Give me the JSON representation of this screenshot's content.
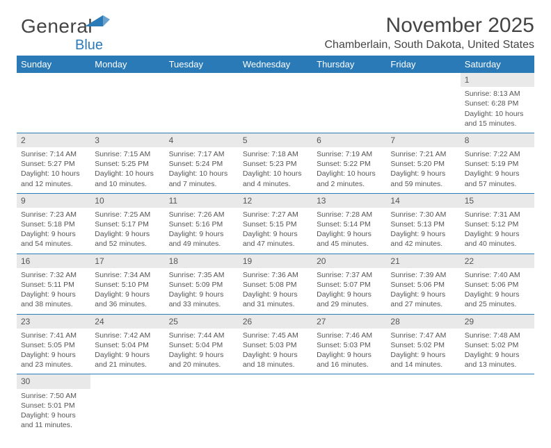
{
  "brand": {
    "word1": "General",
    "word2": "Blue",
    "word1_color": "#555555",
    "word2_color": "#2a7ab8",
    "flag_color": "#2a7ab8"
  },
  "header": {
    "title": "November 2025",
    "location": "Chamberlain, South Dakota, United States"
  },
  "colors": {
    "header_bg": "#2a7ab8",
    "header_text": "#ffffff",
    "daynum_bg": "#e9e9e9",
    "text": "#555555",
    "rule": "#2a7ab8"
  },
  "weekdays": [
    "Sunday",
    "Monday",
    "Tuesday",
    "Wednesday",
    "Thursday",
    "Friday",
    "Saturday"
  ],
  "grid": [
    [
      {
        "blank": true
      },
      {
        "blank": true
      },
      {
        "blank": true
      },
      {
        "blank": true
      },
      {
        "blank": true
      },
      {
        "blank": true
      },
      {
        "d": "1",
        "sunrise": "Sunrise: 8:13 AM",
        "sunset": "Sunset: 6:28 PM",
        "day1": "Daylight: 10 hours",
        "day2": "and 15 minutes."
      }
    ],
    [
      {
        "d": "2",
        "sunrise": "Sunrise: 7:14 AM",
        "sunset": "Sunset: 5:27 PM",
        "day1": "Daylight: 10 hours",
        "day2": "and 12 minutes."
      },
      {
        "d": "3",
        "sunrise": "Sunrise: 7:15 AM",
        "sunset": "Sunset: 5:25 PM",
        "day1": "Daylight: 10 hours",
        "day2": "and 10 minutes."
      },
      {
        "d": "4",
        "sunrise": "Sunrise: 7:17 AM",
        "sunset": "Sunset: 5:24 PM",
        "day1": "Daylight: 10 hours",
        "day2": "and 7 minutes."
      },
      {
        "d": "5",
        "sunrise": "Sunrise: 7:18 AM",
        "sunset": "Sunset: 5:23 PM",
        "day1": "Daylight: 10 hours",
        "day2": "and 4 minutes."
      },
      {
        "d": "6",
        "sunrise": "Sunrise: 7:19 AM",
        "sunset": "Sunset: 5:22 PM",
        "day1": "Daylight: 10 hours",
        "day2": "and 2 minutes."
      },
      {
        "d": "7",
        "sunrise": "Sunrise: 7:21 AM",
        "sunset": "Sunset: 5:20 PM",
        "day1": "Daylight: 9 hours",
        "day2": "and 59 minutes."
      },
      {
        "d": "8",
        "sunrise": "Sunrise: 7:22 AM",
        "sunset": "Sunset: 5:19 PM",
        "day1": "Daylight: 9 hours",
        "day2": "and 57 minutes."
      }
    ],
    [
      {
        "d": "9",
        "sunrise": "Sunrise: 7:23 AM",
        "sunset": "Sunset: 5:18 PM",
        "day1": "Daylight: 9 hours",
        "day2": "and 54 minutes."
      },
      {
        "d": "10",
        "sunrise": "Sunrise: 7:25 AM",
        "sunset": "Sunset: 5:17 PM",
        "day1": "Daylight: 9 hours",
        "day2": "and 52 minutes."
      },
      {
        "d": "11",
        "sunrise": "Sunrise: 7:26 AM",
        "sunset": "Sunset: 5:16 PM",
        "day1": "Daylight: 9 hours",
        "day2": "and 49 minutes."
      },
      {
        "d": "12",
        "sunrise": "Sunrise: 7:27 AM",
        "sunset": "Sunset: 5:15 PM",
        "day1": "Daylight: 9 hours",
        "day2": "and 47 minutes."
      },
      {
        "d": "13",
        "sunrise": "Sunrise: 7:28 AM",
        "sunset": "Sunset: 5:14 PM",
        "day1": "Daylight: 9 hours",
        "day2": "and 45 minutes."
      },
      {
        "d": "14",
        "sunrise": "Sunrise: 7:30 AM",
        "sunset": "Sunset: 5:13 PM",
        "day1": "Daylight: 9 hours",
        "day2": "and 42 minutes."
      },
      {
        "d": "15",
        "sunrise": "Sunrise: 7:31 AM",
        "sunset": "Sunset: 5:12 PM",
        "day1": "Daylight: 9 hours",
        "day2": "and 40 minutes."
      }
    ],
    [
      {
        "d": "16",
        "sunrise": "Sunrise: 7:32 AM",
        "sunset": "Sunset: 5:11 PM",
        "day1": "Daylight: 9 hours",
        "day2": "and 38 minutes."
      },
      {
        "d": "17",
        "sunrise": "Sunrise: 7:34 AM",
        "sunset": "Sunset: 5:10 PM",
        "day1": "Daylight: 9 hours",
        "day2": "and 36 minutes."
      },
      {
        "d": "18",
        "sunrise": "Sunrise: 7:35 AM",
        "sunset": "Sunset: 5:09 PM",
        "day1": "Daylight: 9 hours",
        "day2": "and 33 minutes."
      },
      {
        "d": "19",
        "sunrise": "Sunrise: 7:36 AM",
        "sunset": "Sunset: 5:08 PM",
        "day1": "Daylight: 9 hours",
        "day2": "and 31 minutes."
      },
      {
        "d": "20",
        "sunrise": "Sunrise: 7:37 AM",
        "sunset": "Sunset: 5:07 PM",
        "day1": "Daylight: 9 hours",
        "day2": "and 29 minutes."
      },
      {
        "d": "21",
        "sunrise": "Sunrise: 7:39 AM",
        "sunset": "Sunset: 5:06 PM",
        "day1": "Daylight: 9 hours",
        "day2": "and 27 minutes."
      },
      {
        "d": "22",
        "sunrise": "Sunrise: 7:40 AM",
        "sunset": "Sunset: 5:06 PM",
        "day1": "Daylight: 9 hours",
        "day2": "and 25 minutes."
      }
    ],
    [
      {
        "d": "23",
        "sunrise": "Sunrise: 7:41 AM",
        "sunset": "Sunset: 5:05 PM",
        "day1": "Daylight: 9 hours",
        "day2": "and 23 minutes."
      },
      {
        "d": "24",
        "sunrise": "Sunrise: 7:42 AM",
        "sunset": "Sunset: 5:04 PM",
        "day1": "Daylight: 9 hours",
        "day2": "and 21 minutes."
      },
      {
        "d": "25",
        "sunrise": "Sunrise: 7:44 AM",
        "sunset": "Sunset: 5:04 PM",
        "day1": "Daylight: 9 hours",
        "day2": "and 20 minutes."
      },
      {
        "d": "26",
        "sunrise": "Sunrise: 7:45 AM",
        "sunset": "Sunset: 5:03 PM",
        "day1": "Daylight: 9 hours",
        "day2": "and 18 minutes."
      },
      {
        "d": "27",
        "sunrise": "Sunrise: 7:46 AM",
        "sunset": "Sunset: 5:03 PM",
        "day1": "Daylight: 9 hours",
        "day2": "and 16 minutes."
      },
      {
        "d": "28",
        "sunrise": "Sunrise: 7:47 AM",
        "sunset": "Sunset: 5:02 PM",
        "day1": "Daylight: 9 hours",
        "day2": "and 14 minutes."
      },
      {
        "d": "29",
        "sunrise": "Sunrise: 7:48 AM",
        "sunset": "Sunset: 5:02 PM",
        "day1": "Daylight: 9 hours",
        "day2": "and 13 minutes."
      }
    ],
    [
      {
        "d": "30",
        "sunrise": "Sunrise: 7:50 AM",
        "sunset": "Sunset: 5:01 PM",
        "day1": "Daylight: 9 hours",
        "day2": "and 11 minutes."
      },
      {
        "blank": true
      },
      {
        "blank": true
      },
      {
        "blank": true
      },
      {
        "blank": true
      },
      {
        "blank": true
      },
      {
        "blank": true
      }
    ]
  ]
}
